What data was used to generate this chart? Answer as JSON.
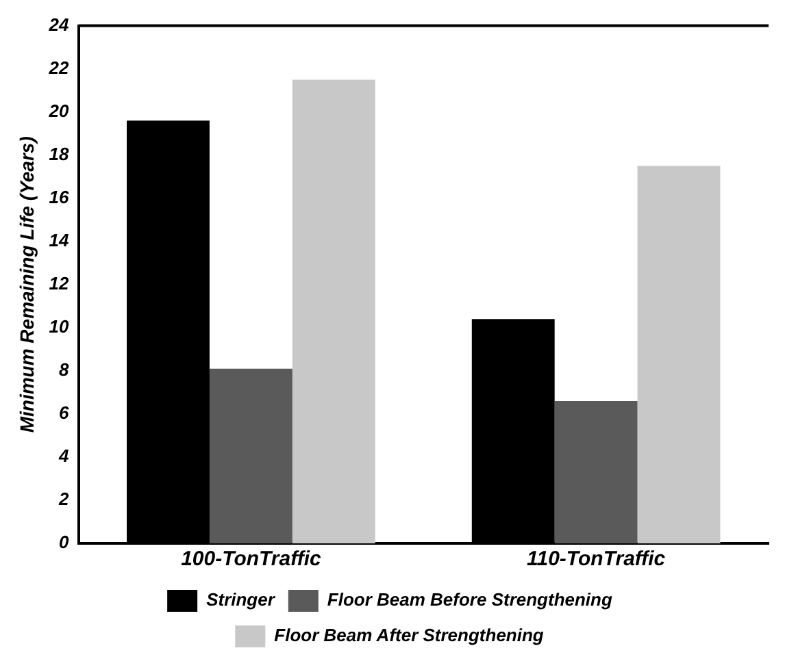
{
  "chart_data": {
    "type": "bar",
    "ylabel": "Minimum Remaining Life (Years)",
    "categories": [
      "100-TonTraffic",
      "110-TonTraffic"
    ],
    "series": [
      {
        "name": "Stringer",
        "color": "#000000",
        "values": [
          19.6,
          10.4
        ]
      },
      {
        "name": "Floor Beam Before Strengthening",
        "color": "#5a5a5a",
        "values": [
          8.1,
          6.6
        ]
      },
      {
        "name": "Floor Beam After Strengthening",
        "color": "#c8c8c8",
        "values": [
          21.5,
          17.5
        ]
      }
    ],
    "ylim": [
      0,
      24
    ],
    "yticks": [
      0,
      2,
      4,
      6,
      8,
      10,
      12,
      14,
      16,
      18,
      20,
      22,
      24
    ],
    "grid": false,
    "legend": "bottom"
  }
}
